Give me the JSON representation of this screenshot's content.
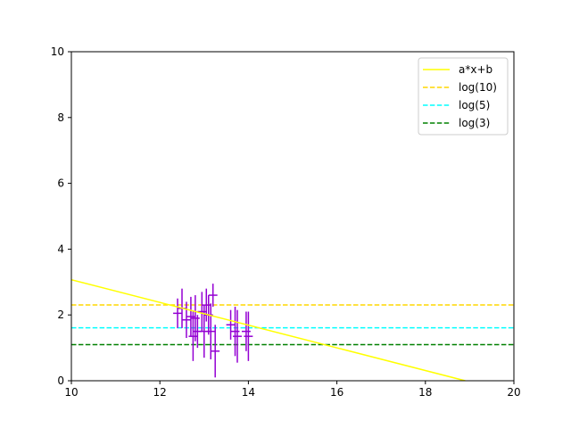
{
  "chart_data": {
    "type": "scatter",
    "title": "",
    "xlabel": "",
    "ylabel": "",
    "xlim": [
      10,
      20
    ],
    "ylim": [
      0,
      10
    ],
    "xticks": [
      10,
      12,
      14,
      16,
      18,
      20
    ],
    "yticks": [
      0,
      2,
      4,
      6,
      8,
      10
    ],
    "grid": false,
    "legend": {
      "placement": "top-right",
      "entries": [
        {
          "label": "a*x+b",
          "color": "#ffff00",
          "style": "solid"
        },
        {
          "label": "log(10)",
          "color": "#ffd700",
          "style": "dashed"
        },
        {
          "label": "log(5)",
          "color": "#00ffff",
          "style": "dashed"
        },
        {
          "label": "log(3)",
          "color": "#008000",
          "style": "dashed"
        }
      ]
    },
    "fit_line": {
      "name": "a*x+b",
      "color": "#ffff00",
      "x": [
        10,
        18.9
      ],
      "y": [
        3.07,
        0
      ]
    },
    "hlines": [
      {
        "name": "log(10)",
        "y": 2.303,
        "color": "#ffd700"
      },
      {
        "name": "log(5)",
        "y": 1.609,
        "color": "#00ffff"
      },
      {
        "name": "log(3)",
        "y": 1.099,
        "color": "#008000"
      }
    ],
    "series": [
      {
        "type": "errorbar",
        "color": "#9400d3",
        "points": [
          {
            "x": 12.4,
            "y": 2.05,
            "yerr": 0.45,
            "xerr": 0.1
          },
          {
            "x": 12.5,
            "y": 2.2,
            "yerr": 0.6,
            "xerr": 0.1
          },
          {
            "x": 12.6,
            "y": 1.85,
            "yerr": 0.55,
            "xerr": 0.1
          },
          {
            "x": 12.7,
            "y": 1.95,
            "yerr": 0.6,
            "xerr": 0.1
          },
          {
            "x": 12.75,
            "y": 1.35,
            "yerr": 0.75,
            "xerr": 0.1
          },
          {
            "x": 12.8,
            "y": 1.9,
            "yerr": 0.7,
            "xerr": 0.1
          },
          {
            "x": 12.85,
            "y": 1.5,
            "yerr": 0.5,
            "xerr": 0.1
          },
          {
            "x": 12.95,
            "y": 2.1,
            "yerr": 0.6,
            "xerr": 0.1
          },
          {
            "x": 13.0,
            "y": 1.5,
            "yerr": 0.8,
            "xerr": 0.1
          },
          {
            "x": 13.05,
            "y": 2.3,
            "yerr": 0.5,
            "xerr": 0.1
          },
          {
            "x": 13.1,
            "y": 2.0,
            "yerr": 0.6,
            "xerr": 0.1
          },
          {
            "x": 13.15,
            "y": 1.5,
            "yerr": 0.85,
            "xerr": 0.1
          },
          {
            "x": 13.2,
            "y": 2.6,
            "yerr": 0.35,
            "xerr": 0.1
          },
          {
            "x": 13.25,
            "y": 0.9,
            "yerr": 0.8,
            "xerr": 0.1
          },
          {
            "x": 13.6,
            "y": 1.7,
            "yerr": 0.45,
            "xerr": 0.1
          },
          {
            "x": 13.7,
            "y": 1.5,
            "yerr": 0.75,
            "xerr": 0.1
          },
          {
            "x": 13.75,
            "y": 1.35,
            "yerr": 0.8,
            "xerr": 0.1
          },
          {
            "x": 13.95,
            "y": 1.5,
            "yerr": 0.6,
            "xerr": 0.1
          },
          {
            "x": 14.0,
            "y": 1.35,
            "yerr": 0.75,
            "xerr": 0.1
          }
        ]
      }
    ]
  }
}
